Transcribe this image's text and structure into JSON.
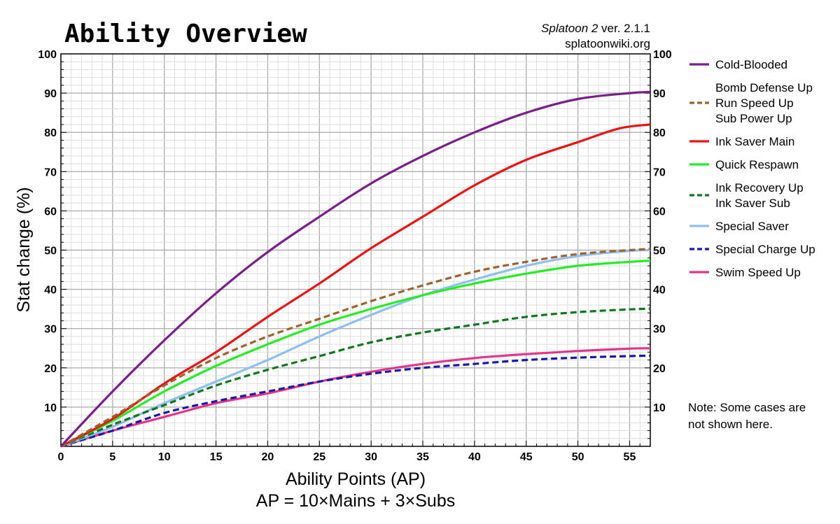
{
  "chart_data": {
    "type": "line",
    "title": "Ability Overview",
    "credit_game": "Splatoon 2",
    "credit_version": " ver. 2.1.1",
    "credit_site": "splatoonwiki.org",
    "xlabel": "Ability Points (AP)",
    "xlabel_sub": "AP = 10×Mains + 3×Subs",
    "ylabel": "Stat change (%)",
    "xlim": [
      0,
      57
    ],
    "ylim": [
      0,
      100
    ],
    "x_ticks": [
      0,
      5,
      10,
      15,
      20,
      25,
      30,
      35,
      40,
      45,
      50,
      55
    ],
    "y_ticks": [
      10,
      20,
      30,
      40,
      50,
      60,
      70,
      80,
      90,
      100
    ],
    "y_ticks_right": [
      10,
      20,
      30,
      40,
      50,
      60,
      70,
      80,
      90,
      100
    ],
    "grid": true,
    "legend_position": "right",
    "note": [
      "Note: Some cases are",
      "not shown here."
    ],
    "series": [
      {
        "legend": [
          "Cold-Blooded"
        ],
        "color": "#7a1e8c",
        "dashed": false,
        "x": [
          0,
          5,
          10,
          15,
          20,
          25,
          30,
          35,
          40,
          45,
          50,
          55,
          57
        ],
        "y": [
          0,
          14,
          27,
          39,
          49.5,
          58.5,
          67,
          74,
          80,
          85,
          88.5,
          90,
          90.3
        ]
      },
      {
        "legend": [
          "Bomb Defense Up",
          "Run Speed Up",
          "Sub Power Up"
        ],
        "color": "#a0622d",
        "dashed": true,
        "x": [
          0,
          5,
          10,
          15,
          20,
          25,
          30,
          35,
          40,
          45,
          50,
          55,
          57
        ],
        "y": [
          0,
          7.5,
          15.5,
          22.5,
          28,
          32.5,
          37,
          41,
          44.5,
          47,
          49,
          50,
          50.3
        ]
      },
      {
        "legend": [
          "Ink Saver Main"
        ],
        "color": "#ee1111",
        "dashed": false,
        "x": [
          0,
          5,
          10,
          15,
          20,
          25,
          30,
          35,
          40,
          45,
          50,
          54,
          57
        ],
        "y": [
          0,
          7,
          16,
          24,
          33,
          41.5,
          50.5,
          58.5,
          66.5,
          73,
          77.5,
          81,
          82
        ]
      },
      {
        "legend": [
          "Quick Respawn"
        ],
        "color": "#22ee22",
        "dashed": false,
        "x": [
          0,
          5,
          10,
          15,
          20,
          25,
          30,
          35,
          40,
          45,
          50,
          55,
          57
        ],
        "y": [
          0,
          6.5,
          14,
          20.5,
          26,
          31,
          35,
          38.5,
          41.5,
          44,
          46,
          47,
          47.3
        ]
      },
      {
        "legend": [
          "Ink Recovery Up",
          "Ink Saver Sub"
        ],
        "color": "#11771e",
        "dashed": true,
        "x": [
          0,
          5,
          10,
          15,
          20,
          25,
          30,
          35,
          40,
          45,
          50,
          55,
          57
        ],
        "y": [
          0,
          5.5,
          10.5,
          15.5,
          19.5,
          23,
          26.5,
          29,
          31,
          33,
          34.2,
          34.9,
          35.1
        ]
      },
      {
        "legend": [
          "Special Saver"
        ],
        "color": "#8fbff0",
        "dashed": false,
        "x": [
          0,
          5,
          10,
          15,
          20,
          25,
          30,
          35,
          40,
          45,
          50,
          55,
          57
        ],
        "y": [
          0,
          5,
          11,
          16.5,
          22,
          28,
          33.5,
          38.5,
          42.5,
          46,
          48.5,
          49.8,
          50
        ]
      },
      {
        "legend": [
          "Special Charge Up"
        ],
        "color": "#1a1aaa",
        "dashed": true,
        "x": [
          0,
          5,
          10,
          15,
          20,
          25,
          30,
          35,
          40,
          45,
          50,
          55,
          57
        ],
        "y": [
          0,
          4,
          8.5,
          11.5,
          14,
          16.5,
          18.5,
          20,
          21,
          22,
          22.6,
          23,
          23.1
        ]
      },
      {
        "legend": [
          "Swim Speed Up"
        ],
        "color": "#e8338a",
        "dashed": false,
        "x": [
          0,
          5,
          10,
          15,
          20,
          25,
          30,
          35,
          40,
          45,
          50,
          55,
          57
        ],
        "y": [
          0,
          4,
          7.5,
          11,
          13.5,
          16.5,
          19,
          21,
          22.5,
          23.5,
          24.3,
          24.9,
          25
        ]
      }
    ]
  }
}
